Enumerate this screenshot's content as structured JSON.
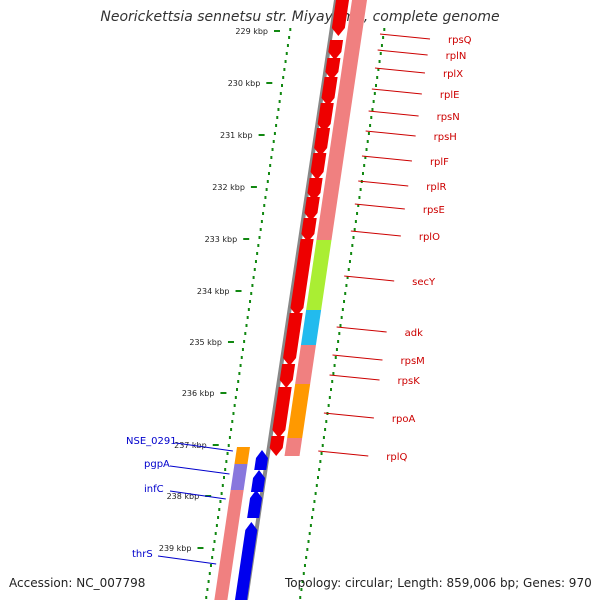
{
  "title": "Neorickettsia sennetsu str. Miyayama, complete genome",
  "accession": "Accession: NC_007798",
  "topology": "Topology: circular; Length: 859,006 bp; Genes: 970",
  "ticks": [
    "229 kbp",
    "230 kbp",
    "231 kbp",
    "232 kbp",
    "233 kbp",
    "234 kbp",
    "235 kbp",
    "236 kbp",
    "237 kbp",
    "238 kbp",
    "239 kbp"
  ],
  "right_labels": [
    "rpsQ",
    "rplN",
    "rplX",
    "rplE",
    "rpsN",
    "rpsH",
    "rplF",
    "rplR",
    "rpsE",
    "rplO",
    "secY",
    "adk",
    "rpsM",
    "rpsK",
    "rpoA",
    "rplQ"
  ],
  "left_labels": [
    "NSE_0291",
    "pgpA",
    "infC",
    "thrS"
  ],
  "colors": {
    "red_gene": "#ee0000",
    "blue_gene": "#0000ee",
    "cog_pink": "#f08080",
    "cog_green": "#aaee33",
    "cog_cyan": "#22bbee",
    "cog_orange": "#ff9900",
    "cog_purple": "#8877dd",
    "backbone": "#888888",
    "gc_dots": "#118811",
    "label_red": "#cc0000",
    "label_blue": "#0000cc"
  }
}
